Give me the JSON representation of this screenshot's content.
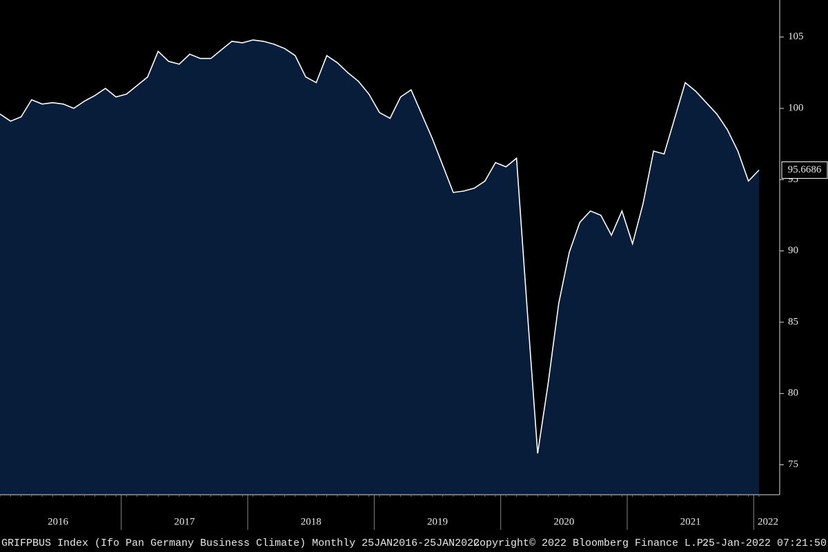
{
  "chart_data": {
    "type": "area",
    "footer": {
      "left": "GRIFPBUS Index (Ifo Pan Germany Business Climate)  Monthly 25JAN2016-25JAN2022",
      "middle": "Copyright© 2022 Bloomberg Finance L.P.",
      "right": "25-Jan-2022 07:21:50"
    },
    "categories": [
      "2016",
      null,
      null,
      null,
      null,
      null,
      null,
      null,
      null,
      null,
      null,
      null,
      "2017",
      null,
      null,
      null,
      null,
      null,
      null,
      null,
      null,
      null,
      null,
      null,
      "2018",
      null,
      null,
      null,
      null,
      null,
      null,
      null,
      null,
      null,
      null,
      null,
      "2019",
      null,
      null,
      null,
      null,
      null,
      null,
      null,
      null,
      null,
      null,
      null,
      "2020",
      null,
      null,
      null,
      null,
      null,
      null,
      null,
      null,
      null,
      null,
      null,
      "2021",
      null,
      null,
      null,
      null,
      null,
      null,
      null,
      null,
      null,
      null,
      null,
      "2022"
    ],
    "values": [
      99.6,
      99.1,
      99.4,
      100.6,
      100.3,
      100.4,
      100.3,
      100.0,
      100.5,
      100.9,
      101.4,
      100.8,
      101.0,
      101.6,
      102.2,
      104.0,
      103.3,
      103.1,
      103.8,
      103.5,
      103.5,
      104.1,
      104.7,
      104.6,
      104.8,
      104.7,
      104.5,
      104.2,
      103.7,
      102.2,
      101.8,
      103.7,
      103.2,
      102.5,
      101.9,
      101.0,
      99.7,
      99.3,
      100.8,
      101.3,
      99.6,
      97.9,
      96.0,
      94.1,
      94.2,
      94.4,
      94.9,
      96.2,
      95.9,
      96.5,
      86.0,
      75.8,
      80.7,
      86.3,
      89.9,
      92.0,
      92.8,
      92.5,
      91.1,
      92.8,
      90.5,
      93.3,
      97.0,
      96.8,
      99.3,
      101.8,
      101.2,
      100.4,
      99.6,
      98.5,
      97.0,
      94.9,
      95.6686
    ],
    "color": "#071d3a",
    "line_color": "#ffffff",
    "ylim": [
      72.9,
      107.6
    ],
    "yticks": [
      75,
      80,
      85,
      90,
      95,
      100,
      105
    ]
  }
}
